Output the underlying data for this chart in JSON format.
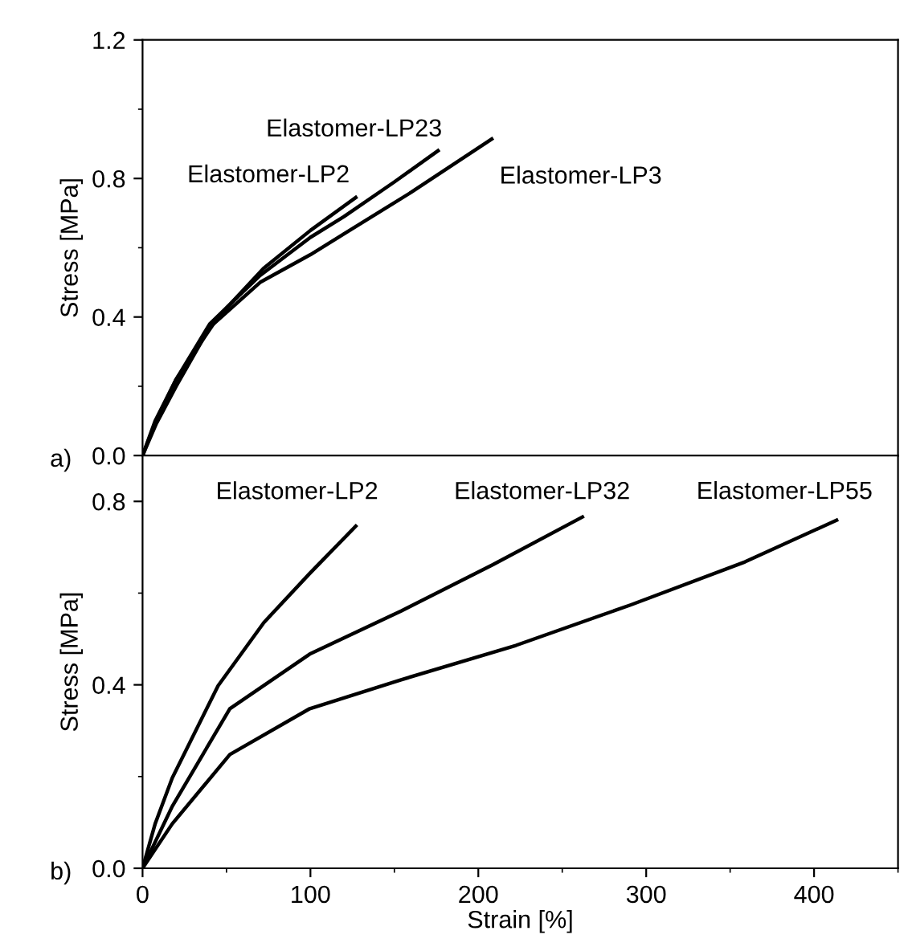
{
  "chart_data": [
    {
      "type": "line",
      "ylabel": "Stress [MPa]",
      "xlim": [
        0,
        450
      ],
      "ylim": [
        0,
        1.2
      ],
      "yticks": [
        {
          "value": 0,
          "label": "0.0"
        },
        0.4,
        0.8,
        1.2
      ],
      "tick_labels": "y",
      "annotations": [
        "a)"
      ],
      "legend": false,
      "grid": false,
      "marker": "none",
      "line_style": "solid",
      "series": [
        {
          "name": "Elastomer-LP2",
          "color": "#000000",
          "x": [
            0,
            7.5,
            20,
            45,
            72,
            100,
            127
          ],
          "values": [
            0,
            0.1,
            0.22,
            0.4,
            0.54,
            0.65,
            0.745
          ]
        },
        {
          "name": "Elastomer-LP23",
          "color": "#000000",
          "x": [
            0,
            8,
            20,
            40,
            70,
            100,
            120,
            150,
            176
          ],
          "values": [
            0,
            0.1,
            0.22,
            0.38,
            0.52,
            0.63,
            0.69,
            0.79,
            0.88
          ]
        },
        {
          "name": "Elastomer-LP3",
          "color": "#000000",
          "x": [
            0,
            8,
            20,
            40,
            70,
            100,
            120,
            160,
            208
          ],
          "values": [
            0,
            0.09,
            0.2,
            0.37,
            0.5,
            0.58,
            0.64,
            0.76,
            0.914
          ]
        }
      ]
    },
    {
      "type": "line",
      "xlabel": "Strain [%]",
      "ylabel": "Stress [MPa]",
      "xlim": [
        0,
        450
      ],
      "xticks": [
        0,
        100,
        200,
        300,
        400
      ],
      "ylim": [
        0,
        0.9
      ],
      "yticks": [
        {
          "value": 0,
          "label": "0.0"
        },
        0.4,
        0.8
      ],
      "annotations": [
        "b)"
      ],
      "legend": false,
      "grid": false,
      "marker": "none",
      "line_style": "solid",
      "series": [
        {
          "name": "Elastomer-LP2",
          "color": "#000000",
          "x": [
            0,
            7.5,
            17.7,
            45,
            72.3,
            99.6,
            127
          ],
          "values": [
            0,
            0.097,
            0.197,
            0.398,
            0.536,
            0.643,
            0.746
          ]
        },
        {
          "name": "Elastomer-LP32",
          "color": "#000000",
          "x": [
            0,
            17.7,
            52,
            99.6,
            154,
            208.7,
            262
          ],
          "values": [
            0,
            0.135,
            0.348,
            0.467,
            0.561,
            0.662,
            0.766
          ]
        },
        {
          "name": "Elastomer-LP55",
          "color": "#000000",
          "x": [
            0,
            17.7,
            52,
            99.6,
            154,
            222.4,
            290.6,
            358.8,
            413.4
          ],
          "values": [
            0,
            0.097,
            0.248,
            0.348,
            0.411,
            0.486,
            0.574,
            0.668,
            0.759
          ]
        }
      ]
    }
  ]
}
